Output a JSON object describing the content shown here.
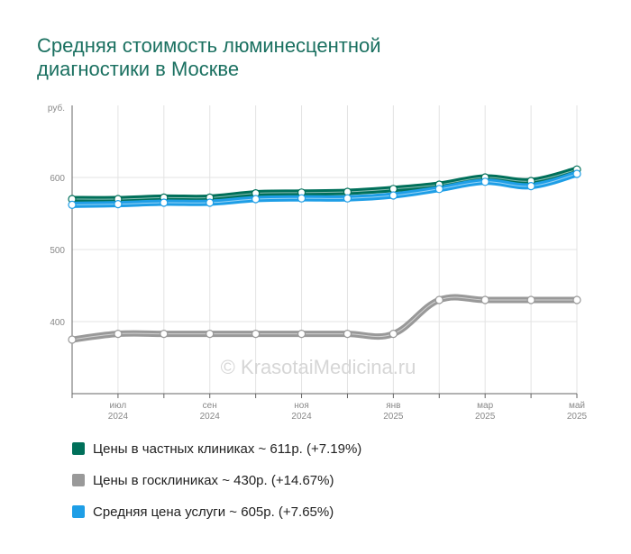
{
  "chart_data": {
    "type": "line",
    "title": [
      "Средняя стоимость люминесцентной",
      "диагностики в Москве"
    ],
    "ylabel": "руб.",
    "ylim": [
      300,
      700
    ],
    "yticks": [
      400,
      500,
      600
    ],
    "ytick_labels": [
      "400",
      "500",
      "600"
    ],
    "x_points": [
      "2024-06",
      "2024-07",
      "2024-08",
      "2024-09",
      "2024-10",
      "2024-11",
      "2024-12",
      "2025-01",
      "2025-02",
      "2025-03",
      "2025-04",
      "2025-05"
    ],
    "x_tick_labels": [
      {
        "index": 1,
        "month": "июл",
        "year": "2024"
      },
      {
        "index": 3,
        "month": "сен",
        "year": "2024"
      },
      {
        "index": 5,
        "month": "ноя",
        "year": "2024"
      },
      {
        "index": 7,
        "month": "янв",
        "year": "2025"
      },
      {
        "index": 9,
        "month": "мар",
        "year": "2025"
      },
      {
        "index": 11,
        "month": "май",
        "year": "2025"
      }
    ],
    "grid": true,
    "legend_position": "bottom",
    "watermark": "© KrasotaiMedicina.ru",
    "series": [
      {
        "name": "Цены в частных клиниках ~ 611р. (+7.19%)",
        "color": "#00705a",
        "values": [
          570,
          570,
          572,
          572,
          578,
          579,
          580,
          584,
          590,
          600,
          595,
          611
        ]
      },
      {
        "name": "Цены в госклиниках ~ 430р. (+14.67%)",
        "color": "#999999",
        "values": [
          375,
          383,
          383,
          383,
          383,
          383,
          383,
          383,
          430,
          430,
          430,
          430
        ]
      },
      {
        "name": "Средняя цена услуги ~ 605р. (+7.65%)",
        "color": "#1e9ee6",
        "values": [
          562,
          563,
          565,
          565,
          570,
          571,
          571,
          575,
          584,
          594,
          588,
          605
        ]
      }
    ]
  }
}
